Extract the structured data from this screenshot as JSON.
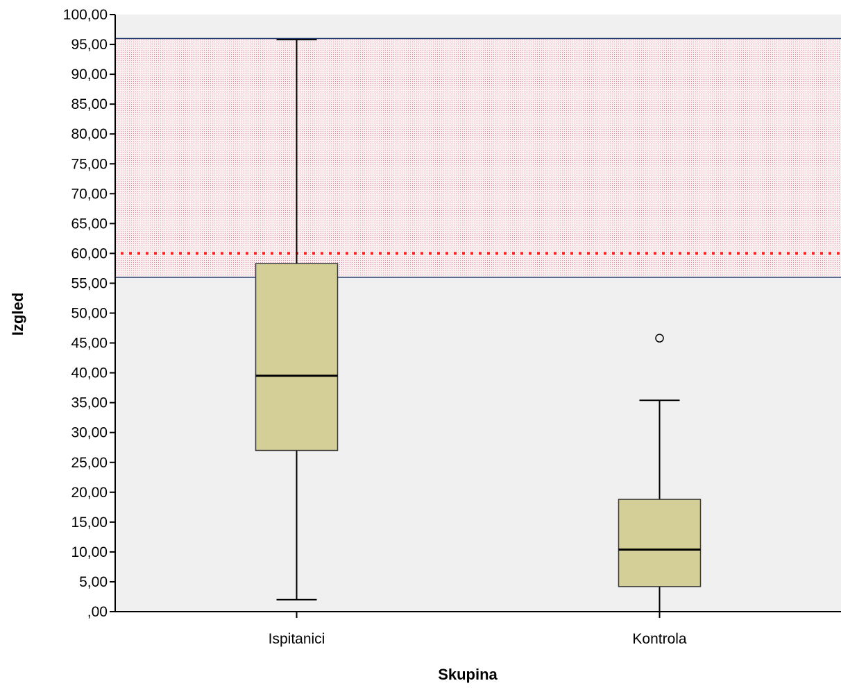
{
  "chart_data": {
    "type": "boxplot",
    "title": "",
    "xlabel": "Skupina",
    "ylabel": "Izgled",
    "ylim": [
      0,
      100
    ],
    "y_ticks": [
      0,
      5,
      10,
      15,
      20,
      25,
      30,
      35,
      40,
      45,
      50,
      55,
      60,
      65,
      70,
      75,
      80,
      85,
      90,
      95,
      100
    ],
    "y_tick_labels": [
      ",00",
      "5,00",
      "10,00",
      "15,00",
      "20,00",
      "25,00",
      "30,00",
      "35,00",
      "40,00",
      "45,00",
      "50,00",
      "55,00",
      "60,00",
      "65,00",
      "70,00",
      "75,00",
      "80,00",
      "85,00",
      "90,00",
      "95,00",
      "100,00"
    ],
    "categories": [
      "Ispitanici",
      "Kontrola"
    ],
    "boxes": [
      {
        "category": "Ispitanici",
        "min": 2,
        "q1": 27,
        "median": 39.5,
        "q3": 58.3,
        "max": 95.8,
        "outliers": []
      },
      {
        "category": "Kontrola",
        "min": 0,
        "q1": 4.2,
        "median": 10.4,
        "q3": 18.8,
        "max": 35.4,
        "outliers": [
          45.8
        ]
      }
    ],
    "reference_band": {
      "from": 56,
      "to": 96
    },
    "reference_line": {
      "value": 60,
      "style": "dotted"
    },
    "grid": false,
    "legend": "none",
    "colors": {
      "plot_background": "#f0f0f0",
      "box_fill": "#d4cf96",
      "band_fill": "#f4c4cc",
      "band_border": "#1f3a6b",
      "reference_line": "#ff2020",
      "axis": "#000000"
    }
  }
}
